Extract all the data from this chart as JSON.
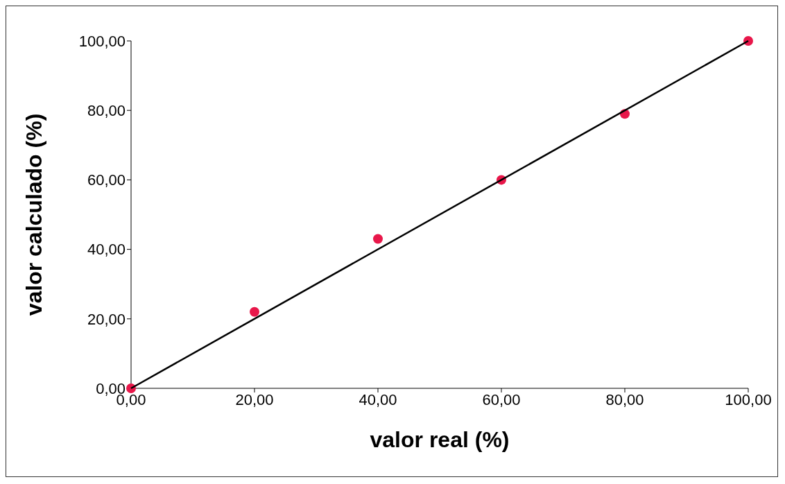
{
  "chart_data": {
    "type": "scatter",
    "xlabel": "valor real (%)",
    "ylabel": "valor calculado (%)",
    "xlim": [
      0,
      100
    ],
    "ylim": [
      0,
      100
    ],
    "xticks": [
      {
        "value": 0,
        "label": "0,00"
      },
      {
        "value": 20,
        "label": "20,00"
      },
      {
        "value": 40,
        "label": "40,00"
      },
      {
        "value": 60,
        "label": "60,00"
      },
      {
        "value": 80,
        "label": "80,00"
      },
      {
        "value": 100,
        "label": "100,00"
      }
    ],
    "yticks": [
      {
        "value": 0,
        "label": "0,00"
      },
      {
        "value": 20,
        "label": "20,00"
      },
      {
        "value": 40,
        "label": "40,00"
      },
      {
        "value": 60,
        "label": "60,00"
      },
      {
        "value": 80,
        "label": "80,00"
      },
      {
        "value": 100,
        "label": "100,00"
      }
    ],
    "grid": false,
    "series": [
      {
        "type": "scatter",
        "marker": "circle",
        "color": "#e8174a",
        "x": [
          0,
          20,
          40,
          60,
          80,
          100
        ],
        "values": [
          0,
          22,
          43,
          60,
          79,
          100
        ]
      },
      {
        "type": "line",
        "marker": "none",
        "color": "#000000",
        "x": [
          0,
          100
        ],
        "values": [
          0,
          100
        ]
      }
    ]
  }
}
